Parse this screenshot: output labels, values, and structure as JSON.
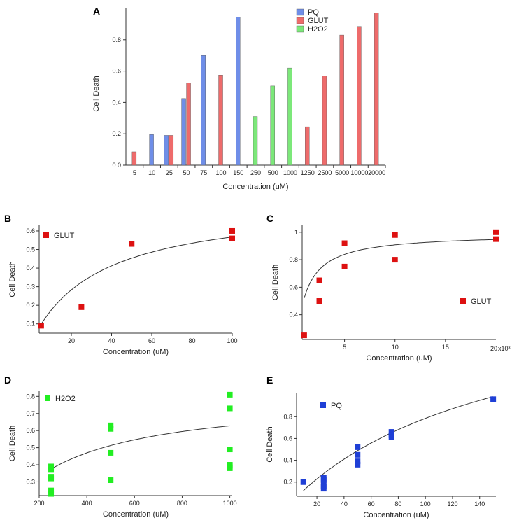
{
  "colors": {
    "pq": "#6f8ee8",
    "glut": "#ee6b6b",
    "h2o2": "#7ce87a",
    "pq_marker": "#1f3fd6",
    "glut_marker": "#dd1111",
    "h2o2_marker": "#22ee22",
    "axis": "#333333",
    "fit": "#333333"
  },
  "chart_data": [
    {
      "panel": "A",
      "type": "bar",
      "ylabel": "Cell Death",
      "xlabel": "Concentration (uM)",
      "ylim": [
        0,
        1
      ],
      "yticks": [
        "0.0",
        "0.2",
        "0.4",
        "0.6",
        "0.8"
      ],
      "categories": [
        "5",
        "10",
        "25",
        "50",
        "75",
        "100",
        "150",
        "250",
        "500",
        "1000",
        "1250",
        "2500",
        "5000",
        "10000",
        "20000"
      ],
      "series": [
        {
          "name": "PQ",
          "color_key": "pq",
          "values": [
            null,
            0.195,
            0.19,
            0.425,
            0.7,
            null,
            0.945,
            null,
            null,
            null,
            null,
            null,
            null,
            null,
            null
          ]
        },
        {
          "name": "GLUT",
          "color_key": "glut",
          "values": [
            0.085,
            null,
            0.19,
            0.525,
            null,
            0.575,
            null,
            null,
            null,
            null,
            0.245,
            0.57,
            0.83,
            0.885,
            0.97
          ]
        },
        {
          "name": "H2O2",
          "color_key": "h2o2",
          "values": [
            null,
            null,
            null,
            null,
            null,
            null,
            null,
            0.31,
            0.505,
            0.62,
            null,
            null,
            null,
            null,
            null
          ]
        }
      ],
      "legend": [
        "PQ",
        "GLUT",
        "H2O2"
      ]
    },
    {
      "panel": "B",
      "type": "scatter",
      "ylabel": "Cell Death",
      "xlabel": "Concentration (uM)",
      "xlim": [
        4,
        100
      ],
      "ylim": [
        0.05,
        0.63
      ],
      "xticks": [
        20,
        40,
        60,
        80,
        100
      ],
      "yticks": [
        0.1,
        0.2,
        0.3,
        0.4,
        0.5,
        0.6
      ],
      "x": [
        5,
        25,
        50,
        100,
        100
      ],
      "y": [
        0.09,
        0.19,
        0.53,
        0.6,
        0.56
      ],
      "fit": {
        "model": "hill",
        "vmax": 0.758,
        "k": 33.6,
        "x_from": 5,
        "x_to": 100
      },
      "legend": [
        "GLUT"
      ],
      "color_key": "glut_marker"
    },
    {
      "panel": "C",
      "type": "scatter",
      "ylabel": "Cell Death",
      "xlabel": "Concentration (uM)",
      "x_multiplier": "x10³",
      "x_multiplier_prefix": "20",
      "xlim": [
        800,
        20000
      ],
      "ylim": [
        0.22,
        1.05
      ],
      "xticks": [
        5000,
        10000,
        15000
      ],
      "xtick_labels": [
        "5",
        "10",
        "15"
      ],
      "yticks": [
        0.4,
        0.6,
        0.8,
        1.0
      ],
      "x": [
        1000,
        2500,
        2500,
        5000,
        5000,
        10000,
        10000,
        20000,
        20000
      ],
      "y": [
        0.25,
        0.65,
        0.5,
        0.92,
        0.75,
        0.98,
        0.8,
        1.0,
        0.95
      ],
      "fit": {
        "model": "hill",
        "vmax": 0.99,
        "k": 900,
        "x_from": 1000,
        "x_to": 20000
      },
      "legend": [
        "GLUT"
      ],
      "color_key": "glut_marker"
    },
    {
      "panel": "D",
      "type": "scatter",
      "ylabel": "Cell Death",
      "xlabel": "Concentration (uM)",
      "xlim": [
        200,
        1010
      ],
      "ylim": [
        0.22,
        0.83
      ],
      "xticks": [
        200,
        400,
        600,
        800,
        1000
      ],
      "yticks": [
        0.3,
        0.4,
        0.5,
        0.6,
        0.7,
        0.8
      ],
      "x": [
        250,
        250,
        250,
        250,
        250,
        250,
        500,
        500,
        500,
        500,
        1000,
        1000,
        1000,
        1000,
        1000,
        1000
      ],
      "y": [
        0.39,
        0.37,
        0.33,
        0.32,
        0.25,
        0.23,
        0.63,
        0.61,
        0.47,
        0.31,
        0.81,
        0.73,
        0.49,
        0.4,
        0.39,
        0.38
      ],
      "fit": {
        "model": "hill",
        "vmax": 0.81,
        "k": 290,
        "x_from": 250,
        "x_to": 1000
      },
      "legend": [
        "H2O2"
      ],
      "color_key": "h2o2_marker"
    },
    {
      "panel": "E",
      "type": "scatter",
      "ylabel": "Cell Death",
      "xlabel": "Concentration (uM)",
      "xlim": [
        5,
        152
      ],
      "ylim": [
        0.07,
        1.02
      ],
      "xticks": [
        20,
        40,
        60,
        80,
        100,
        120,
        140
      ],
      "yticks": [
        0.2,
        0.4,
        0.6,
        0.8
      ],
      "x": [
        10,
        25,
        25,
        25,
        25,
        25,
        50,
        50,
        50,
        50,
        75,
        75,
        75,
        150
      ],
      "y": [
        0.2,
        0.24,
        0.22,
        0.19,
        0.16,
        0.14,
        0.52,
        0.45,
        0.39,
        0.36,
        0.66,
        0.63,
        0.61,
        0.96
      ],
      "fit": {
        "model": "hill",
        "vmax": 2.0,
        "k": 155,
        "x_from": 10,
        "x_to": 150
      },
      "legend": [
        "PQ"
      ],
      "color_key": "pq_marker"
    }
  ]
}
